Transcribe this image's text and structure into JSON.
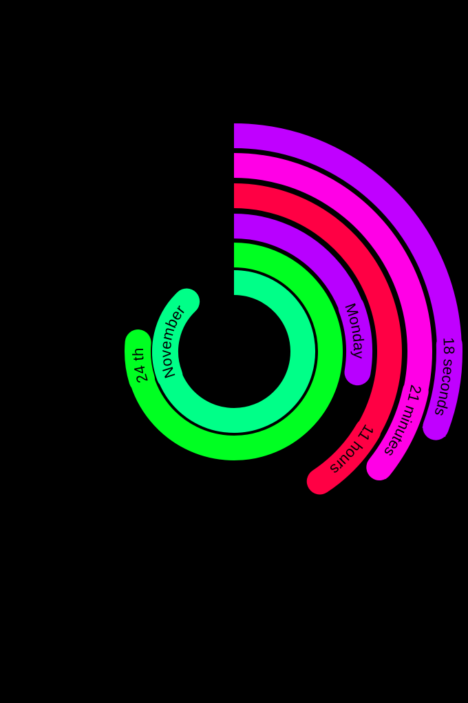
{
  "background_color": "#000000",
  "clock": {
    "rings": [
      {
        "key": "month",
        "label": "November",
        "color": "#00FF88",
        "fraction": 0.8833
      },
      {
        "key": "day",
        "label": "24 th",
        "color": "#00FF22",
        "fraction": 0.7689
      },
      {
        "key": "weekday",
        "label": "Monday",
        "color": "#B800FF",
        "fraction": 0.2806
      },
      {
        "key": "hour",
        "label": "11 hours",
        "color": "#FF0044",
        "fraction": 0.4111
      },
      {
        "key": "minute",
        "label": "21 minutes",
        "color": "#FF00E6",
        "fraction": 0.3611
      },
      {
        "key": "second",
        "label": "18 seconds",
        "color": "#C000FF",
        "fraction": 0.3111
      }
    ]
  }
}
